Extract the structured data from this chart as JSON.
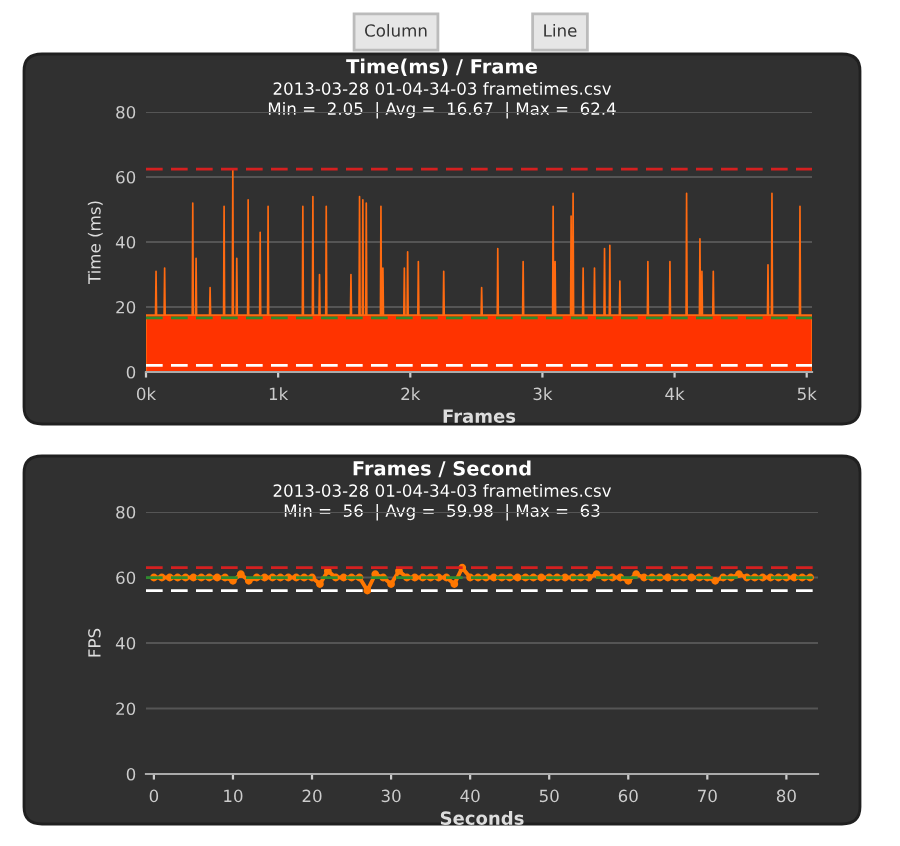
{
  "chart_data": [
    {
      "type": "area",
      "title": "Time(ms) / Frame",
      "subtitle": "2013-03-28 01-04-34-03 frametimes.csv\nMin =  2.05  | Avg =  16.67  | Max =  62.4",
      "xlabel": "Frames",
      "ylabel": "Time (ms)",
      "annotations": [
        "Column",
        "Line"
      ],
      "x": [
        0,
        72,
        76,
        80,
        137,
        141,
        145,
        350,
        354,
        358,
        375,
        379,
        383,
        481,
        485,
        489,
        587,
        591,
        595,
        653,
        657,
        661,
        683,
        687,
        691,
        769,
        773,
        777,
        860,
        864,
        868,
        920,
        924,
        928,
        1183,
        1187,
        1191,
        1259,
        1263,
        1267,
        1309,
        1313,
        1317,
        1360,
        1364,
        1368,
        1547,
        1551,
        1555,
        1612,
        1616,
        1620,
        1637,
        1641,
        1645,
        1663,
        1667,
        1671,
        1774,
        1778,
        1782,
        1789,
        1793,
        1797,
        1951,
        1955,
        1959,
        1976,
        1980,
        1984,
        2057,
        2061,
        2065,
        2249,
        2253,
        2257,
        2536,
        2540,
        2544,
        2658,
        2662,
        2666,
        2850,
        2854,
        2858,
        3077,
        3081,
        3085,
        3092,
        3096,
        3100,
        3213,
        3217,
        3221,
        3228,
        3232,
        3236,
        3304,
        3308,
        3312,
        3390,
        3394,
        3398,
        3466,
        3470,
        3474,
        3506,
        3510,
        3514,
        3582,
        3586,
        3590,
        3794,
        3798,
        3802,
        3961,
        3965,
        3969,
        4087,
        4091,
        4095,
        4188,
        4192,
        4196,
        4203,
        4207,
        4211,
        4289,
        4293,
        4297,
        4703,
        4707,
        4711,
        4733,
        4737,
        4741,
        4945,
        4949,
        4953,
        5040
      ],
      "series": [
        {
          "color": "#ff3300",
          "values": [
            17.5,
            17.5,
            31,
            17.5,
            17.5,
            32,
            17.5,
            17.5,
            52,
            17.5,
            17.5,
            35,
            17.5,
            17.5,
            26,
            17.5,
            17.5,
            51,
            17.5,
            17.5,
            62.4,
            17.5,
            17.5,
            35,
            17.5,
            17.5,
            53,
            17.5,
            17.5,
            43,
            17.5,
            17.5,
            51,
            17.5,
            17.5,
            51,
            17.5,
            17.5,
            54,
            17.5,
            17.5,
            30,
            17.5,
            17.5,
            51,
            17.5,
            17.5,
            30,
            17.5,
            17.5,
            54,
            17.5,
            17.5,
            53,
            17.5,
            17.5,
            52,
            17.5,
            17.5,
            51,
            17.5,
            17.5,
            32,
            17.5,
            17.5,
            32,
            17.5,
            17.5,
            37,
            17.5,
            17.5,
            34,
            17.5,
            17.5,
            31,
            17.5,
            17.5,
            26,
            17.5,
            17.5,
            38,
            17.5,
            17.5,
            34,
            17.5,
            17.5,
            51,
            17.5,
            17.5,
            34,
            17.5,
            17.5,
            48,
            17.5,
            17.5,
            55,
            17.5,
            17.5,
            32,
            17.5,
            17.5,
            32,
            17.5,
            17.5,
            38,
            17.5,
            17.5,
            39,
            17.5,
            17.5,
            28,
            17.5,
            17.5,
            34,
            17.5,
            17.5,
            34,
            17.5,
            17.5,
            55,
            17.5,
            17.5,
            41,
            17.5,
            17.5,
            31,
            17.5,
            17.5,
            31,
            17.5,
            17.5,
            33,
            17.5,
            17.5,
            55,
            17.5,
            17.5,
            51,
            17.5,
            17.5
          ]
        }
      ],
      "xlim": [
        0,
        5040
      ],
      "ylim": [
        0,
        80
      ],
      "xticks": [
        {
          "value": 0,
          "label": "0k"
        },
        {
          "value": 1000,
          "label": "1k"
        },
        {
          "value": 2000,
          "label": "2k"
        },
        {
          "value": 3000,
          "label": "3k"
        },
        {
          "value": 4000,
          "label": "4k"
        },
        {
          "value": 5000,
          "label": "5k"
        }
      ],
      "yticks": [
        0,
        20,
        40,
        60,
        80
      ],
      "grid": "y",
      "ref_lines": [
        {
          "axis": "y",
          "value": 62.4,
          "color": "#d42020",
          "line_style": "dashed"
        },
        {
          "axis": "y",
          "value": 16.67,
          "color": "#2e8b2e",
          "line_style": "dashed"
        },
        {
          "axis": "y",
          "value": 2.05,
          "color": "#ffffff",
          "line_style": "dashed"
        }
      ]
    },
    {
      "type": "line",
      "title": "Frames / Second",
      "subtitle": "2013-03-28 01-04-34-03 frametimes.csv\nMin =  56  | Avg =  59.98  | Max =  63",
      "xlabel": "Seconds",
      "ylabel": "FPS",
      "x": [
        0,
        1,
        2,
        3,
        4,
        5,
        6,
        7,
        8,
        9,
        10,
        11,
        12,
        13,
        14,
        15,
        16,
        17,
        18,
        19,
        20,
        21,
        22,
        23,
        24,
        25,
        26,
        27,
        28,
        29,
        30,
        31,
        32,
        33,
        34,
        35,
        36,
        37,
        38,
        39,
        40,
        41,
        42,
        43,
        44,
        45,
        46,
        47,
        48,
        49,
        50,
        51,
        52,
        53,
        54,
        55,
        56,
        57,
        58,
        59,
        60,
        61,
        62,
        63,
        64,
        65,
        66,
        67,
        68,
        69,
        70,
        71,
        72,
        73,
        74,
        75,
        76,
        77,
        78,
        79,
        80,
        81,
        82,
        83
      ],
      "series": [
        {
          "color": "#ff7700",
          "values": [
            60,
            60,
            60,
            60,
            60,
            60,
            60,
            60,
            60,
            60,
            59,
            61,
            59,
            60,
            60,
            60,
            60,
            60,
            60,
            60,
            60,
            58,
            62,
            60,
            60,
            60,
            60,
            56,
            61,
            60,
            58,
            62,
            60,
            60,
            60,
            60,
            60,
            60,
            58,
            63,
            60,
            60,
            60,
            60,
            60,
            60,
            60,
            60,
            60,
            60,
            60,
            60,
            60,
            60,
            60,
            60,
            61,
            60,
            60,
            60,
            59,
            61,
            60,
            60,
            60,
            60,
            60,
            60,
            60,
            60,
            60,
            59,
            60,
            60,
            61,
            60,
            60,
            60,
            60,
            60,
            60,
            60,
            60,
            60
          ]
        }
      ],
      "xlim": [
        -1,
        84
      ],
      "ylim": [
        0,
        80
      ],
      "xticks": [
        0,
        10,
        20,
        30,
        40,
        50,
        60,
        70,
        80
      ],
      "yticks": [
        0,
        20,
        40,
        60,
        80
      ],
      "grid": "y",
      "marker": "circle",
      "line_style": "solid",
      "ref_lines": [
        {
          "axis": "y",
          "value": 63,
          "color": "#d42020",
          "line_style": "dashed"
        },
        {
          "axis": "y",
          "value": 59.98,
          "color": "#2e8b2e",
          "line_style": "dashed"
        },
        {
          "axis": "y",
          "value": 56,
          "color": "#ffffff",
          "line_style": "dashed"
        }
      ]
    }
  ]
}
